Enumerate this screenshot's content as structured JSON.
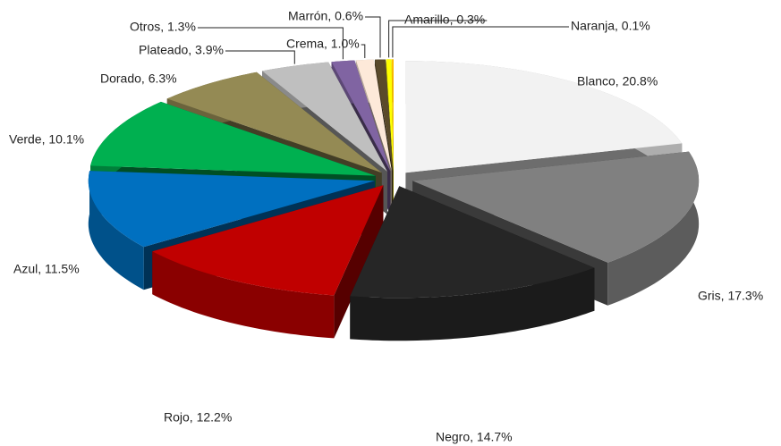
{
  "chart_data": {
    "type": "pie",
    "values": [
      20.8,
      17.3,
      14.7,
      12.2,
      11.5,
      10.1,
      6.3,
      3.9,
      1.3,
      1.0,
      0.6,
      0.3,
      0.1
    ],
    "value_labels": [
      "Blanco, 20.8%",
      "Gris, 17.3%",
      "Negro, 14.7%",
      "Rojo, 12.2%",
      "Azul, 11.5%",
      "Verde, 10.1%",
      "Dorado, 6.3%",
      "Plateado, 3.9%",
      "Otros, 1.3%",
      "Crema, 1.0%",
      "Marrón, 0.6%",
      "Amarillo, 0.3%",
      "Naranja, 0.1%"
    ],
    "colors": [
      "#f2f2f2",
      "#808080",
      "#262626",
      "#c00000",
      "#0070c0",
      "#00b050",
      "#948a54",
      "#bfbfbf",
      "#8064a2",
      "#fde9d9",
      "#5a4a2a",
      "#ffff00",
      "#ffc000"
    ]
  }
}
